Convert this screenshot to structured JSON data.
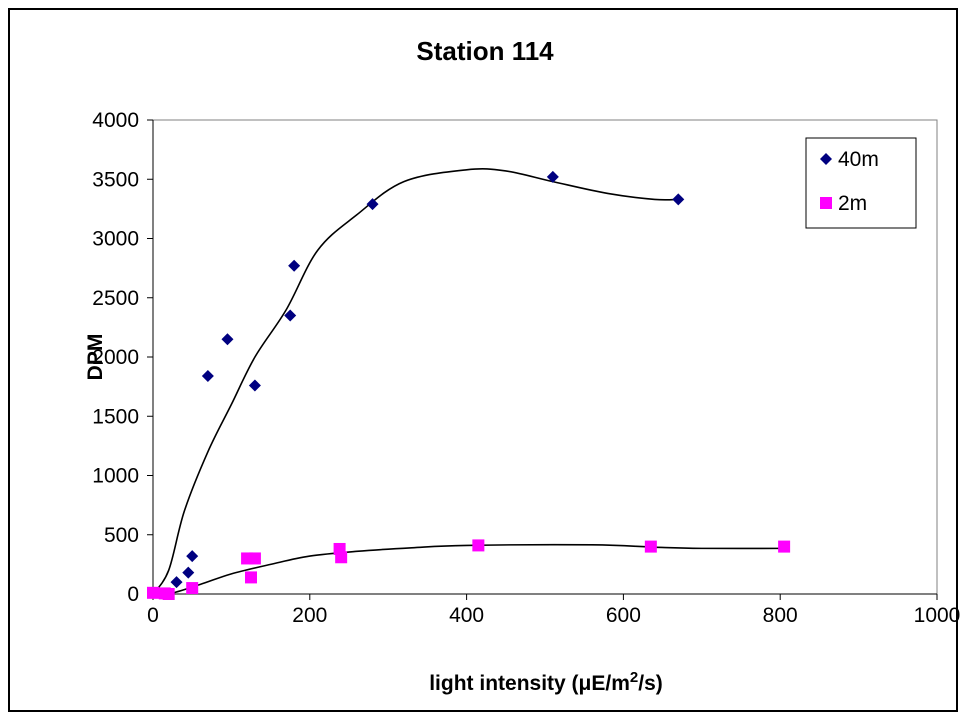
{
  "chart_data": {
    "type": "scatter",
    "title": "Station 114",
    "xlabel": "light intensity (μE/m²/s)",
    "ylabel": "DPM",
    "xlim": [
      0,
      1000
    ],
    "ylim": [
      0,
      4000
    ],
    "xticks": [
      "0",
      "200",
      "400",
      "600",
      "800",
      "1000"
    ],
    "yticks": [
      "0",
      "500",
      "1000",
      "1500",
      "2000",
      "2500",
      "3000",
      "3500",
      "4000"
    ],
    "legend_position": "top-right",
    "grid": false,
    "series": [
      {
        "name": "40m",
        "marker": "diamond",
        "color": "#000080",
        "points": [
          [
            0,
            10
          ],
          [
            30,
            100
          ],
          [
            45,
            180
          ],
          [
            50,
            320
          ],
          [
            70,
            1840
          ],
          [
            95,
            2150
          ],
          [
            130,
            1760
          ],
          [
            175,
            2350
          ],
          [
            180,
            2770
          ],
          [
            280,
            3290
          ],
          [
            510,
            3520
          ],
          [
            670,
            3330
          ]
        ],
        "trendline": [
          [
            0,
            0
          ],
          [
            20,
            200
          ],
          [
            40,
            700
          ],
          [
            70,
            1200
          ],
          [
            100,
            1600
          ],
          [
            130,
            2000
          ],
          [
            170,
            2400
          ],
          [
            210,
            2900
          ],
          [
            260,
            3200
          ],
          [
            320,
            3480
          ],
          [
            400,
            3580
          ],
          [
            450,
            3570
          ],
          [
            510,
            3480
          ],
          [
            580,
            3380
          ],
          [
            640,
            3330
          ],
          [
            670,
            3330
          ]
        ]
      },
      {
        "name": "2m",
        "marker": "square",
        "color": "#ff00ff",
        "points": [
          [
            0,
            10
          ],
          [
            15,
            5
          ],
          [
            20,
            0
          ],
          [
            50,
            50
          ],
          [
            120,
            300
          ],
          [
            130,
            300
          ],
          [
            125,
            140
          ],
          [
            238,
            380
          ],
          [
            240,
            310
          ],
          [
            415,
            410
          ],
          [
            635,
            400
          ],
          [
            805,
            400
          ]
        ],
        "trendline": [
          [
            0,
            0
          ],
          [
            20,
            0
          ],
          [
            60,
            80
          ],
          [
            100,
            170
          ],
          [
            150,
            250
          ],
          [
            200,
            320
          ],
          [
            260,
            360
          ],
          [
            330,
            390
          ],
          [
            400,
            410
          ],
          [
            560,
            415
          ],
          [
            640,
            395
          ],
          [
            700,
            385
          ],
          [
            805,
            385
          ]
        ]
      }
    ]
  }
}
